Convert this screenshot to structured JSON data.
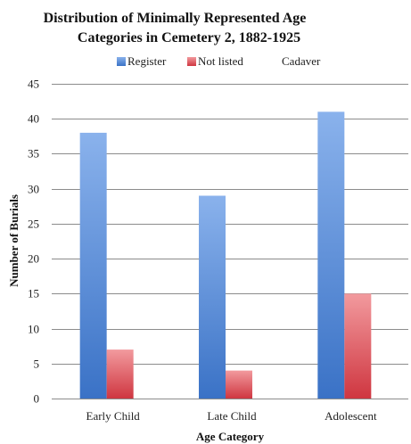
{
  "chart_data": {
    "type": "bar",
    "title_lines": [
      "Distribution of Minimally Represented Age",
      "Categories in Cemetery 2, 1882-1925"
    ],
    "xlabel": "Age Category",
    "ylabel": "Number of Burials",
    "categories": [
      "Early Child",
      "Late Child",
      "Adolescent"
    ],
    "series": [
      {
        "name": "Register",
        "values": [
          38,
          29,
          41
        ],
        "color": "#4f86d8"
      },
      {
        "name": "Not listed",
        "values": [
          7,
          4,
          15
        ],
        "color": "#e0474f"
      },
      {
        "name": "Cadaver",
        "values": [
          0,
          0,
          0
        ],
        "color": "#a6c85a"
      }
    ],
    "ylim": [
      0,
      45
    ],
    "yticks": [
      0,
      5,
      10,
      15,
      20,
      25,
      30,
      35,
      40,
      45
    ],
    "grid": true,
    "legend_position": "top"
  }
}
